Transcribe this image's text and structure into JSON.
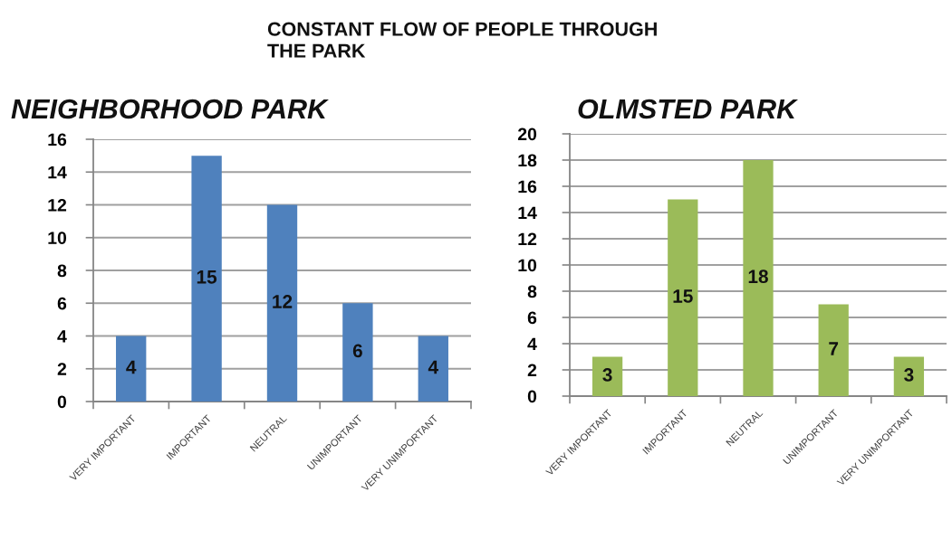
{
  "chart_data": [
    {
      "type": "bar",
      "title": "NEIGHBORHOOD PARK",
      "annotations": [
        "CONSTANT FLOW OF PEOPLE THROUGH\nTHE PARK"
      ],
      "categories": [
        "VERY IMPORTANT",
        "IMPORTANT",
        "NEUTRAL",
        "UNIMPORTANT",
        "VERY UNIMPORTANT"
      ],
      "values": [
        4,
        15,
        12,
        6,
        4
      ],
      "color": "#4f81bd",
      "ylim": [
        0,
        16
      ],
      "yticks": [
        0,
        2,
        4,
        6,
        8,
        10,
        12,
        14,
        16
      ],
      "grid": "y",
      "data_labels": true
    },
    {
      "type": "bar",
      "title": "OLMSTED PARK",
      "categories": [
        "VERY IMPORTANT",
        "IMPORTANT",
        "NEUTRAL",
        "UNIMPORTANT",
        "VERY UNIMPORTANT"
      ],
      "values": [
        3,
        15,
        18,
        7,
        3
      ],
      "color": "#9bbb59",
      "ylim": [
        0,
        20
      ],
      "yticks": [
        0,
        2,
        4,
        6,
        8,
        10,
        12,
        14,
        16,
        18,
        20
      ],
      "grid": "y",
      "data_labels": true
    }
  ]
}
